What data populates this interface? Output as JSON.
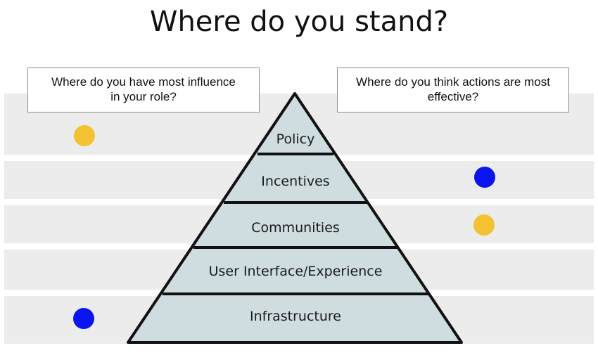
{
  "title": "Where do you stand?",
  "left_question": {
    "line1": "Where do you have most influence",
    "line2": "in your role?"
  },
  "right_question": {
    "line1": "Where do you think actions are most",
    "line2": "effective?"
  },
  "pyramid_levels": [
    "Policy",
    "Incentives",
    "Communities",
    "User Interface/Experience",
    "Infrastructure"
  ],
  "colors": {
    "band": "#ececec",
    "pyramid_fill": "#cfdde0",
    "pyramid_stroke": "#111111",
    "dot_yellow": "#f3c232",
    "dot_blue": "#0a14f0"
  },
  "markers": [
    {
      "column": "influence",
      "level": "Policy",
      "color": "yellow"
    },
    {
      "column": "influence",
      "level": "Infrastructure",
      "color": "blue"
    },
    {
      "column": "effective",
      "level": "Incentives",
      "color": "blue"
    },
    {
      "column": "effective",
      "level": "Communities",
      "color": "yellow"
    }
  ]
}
